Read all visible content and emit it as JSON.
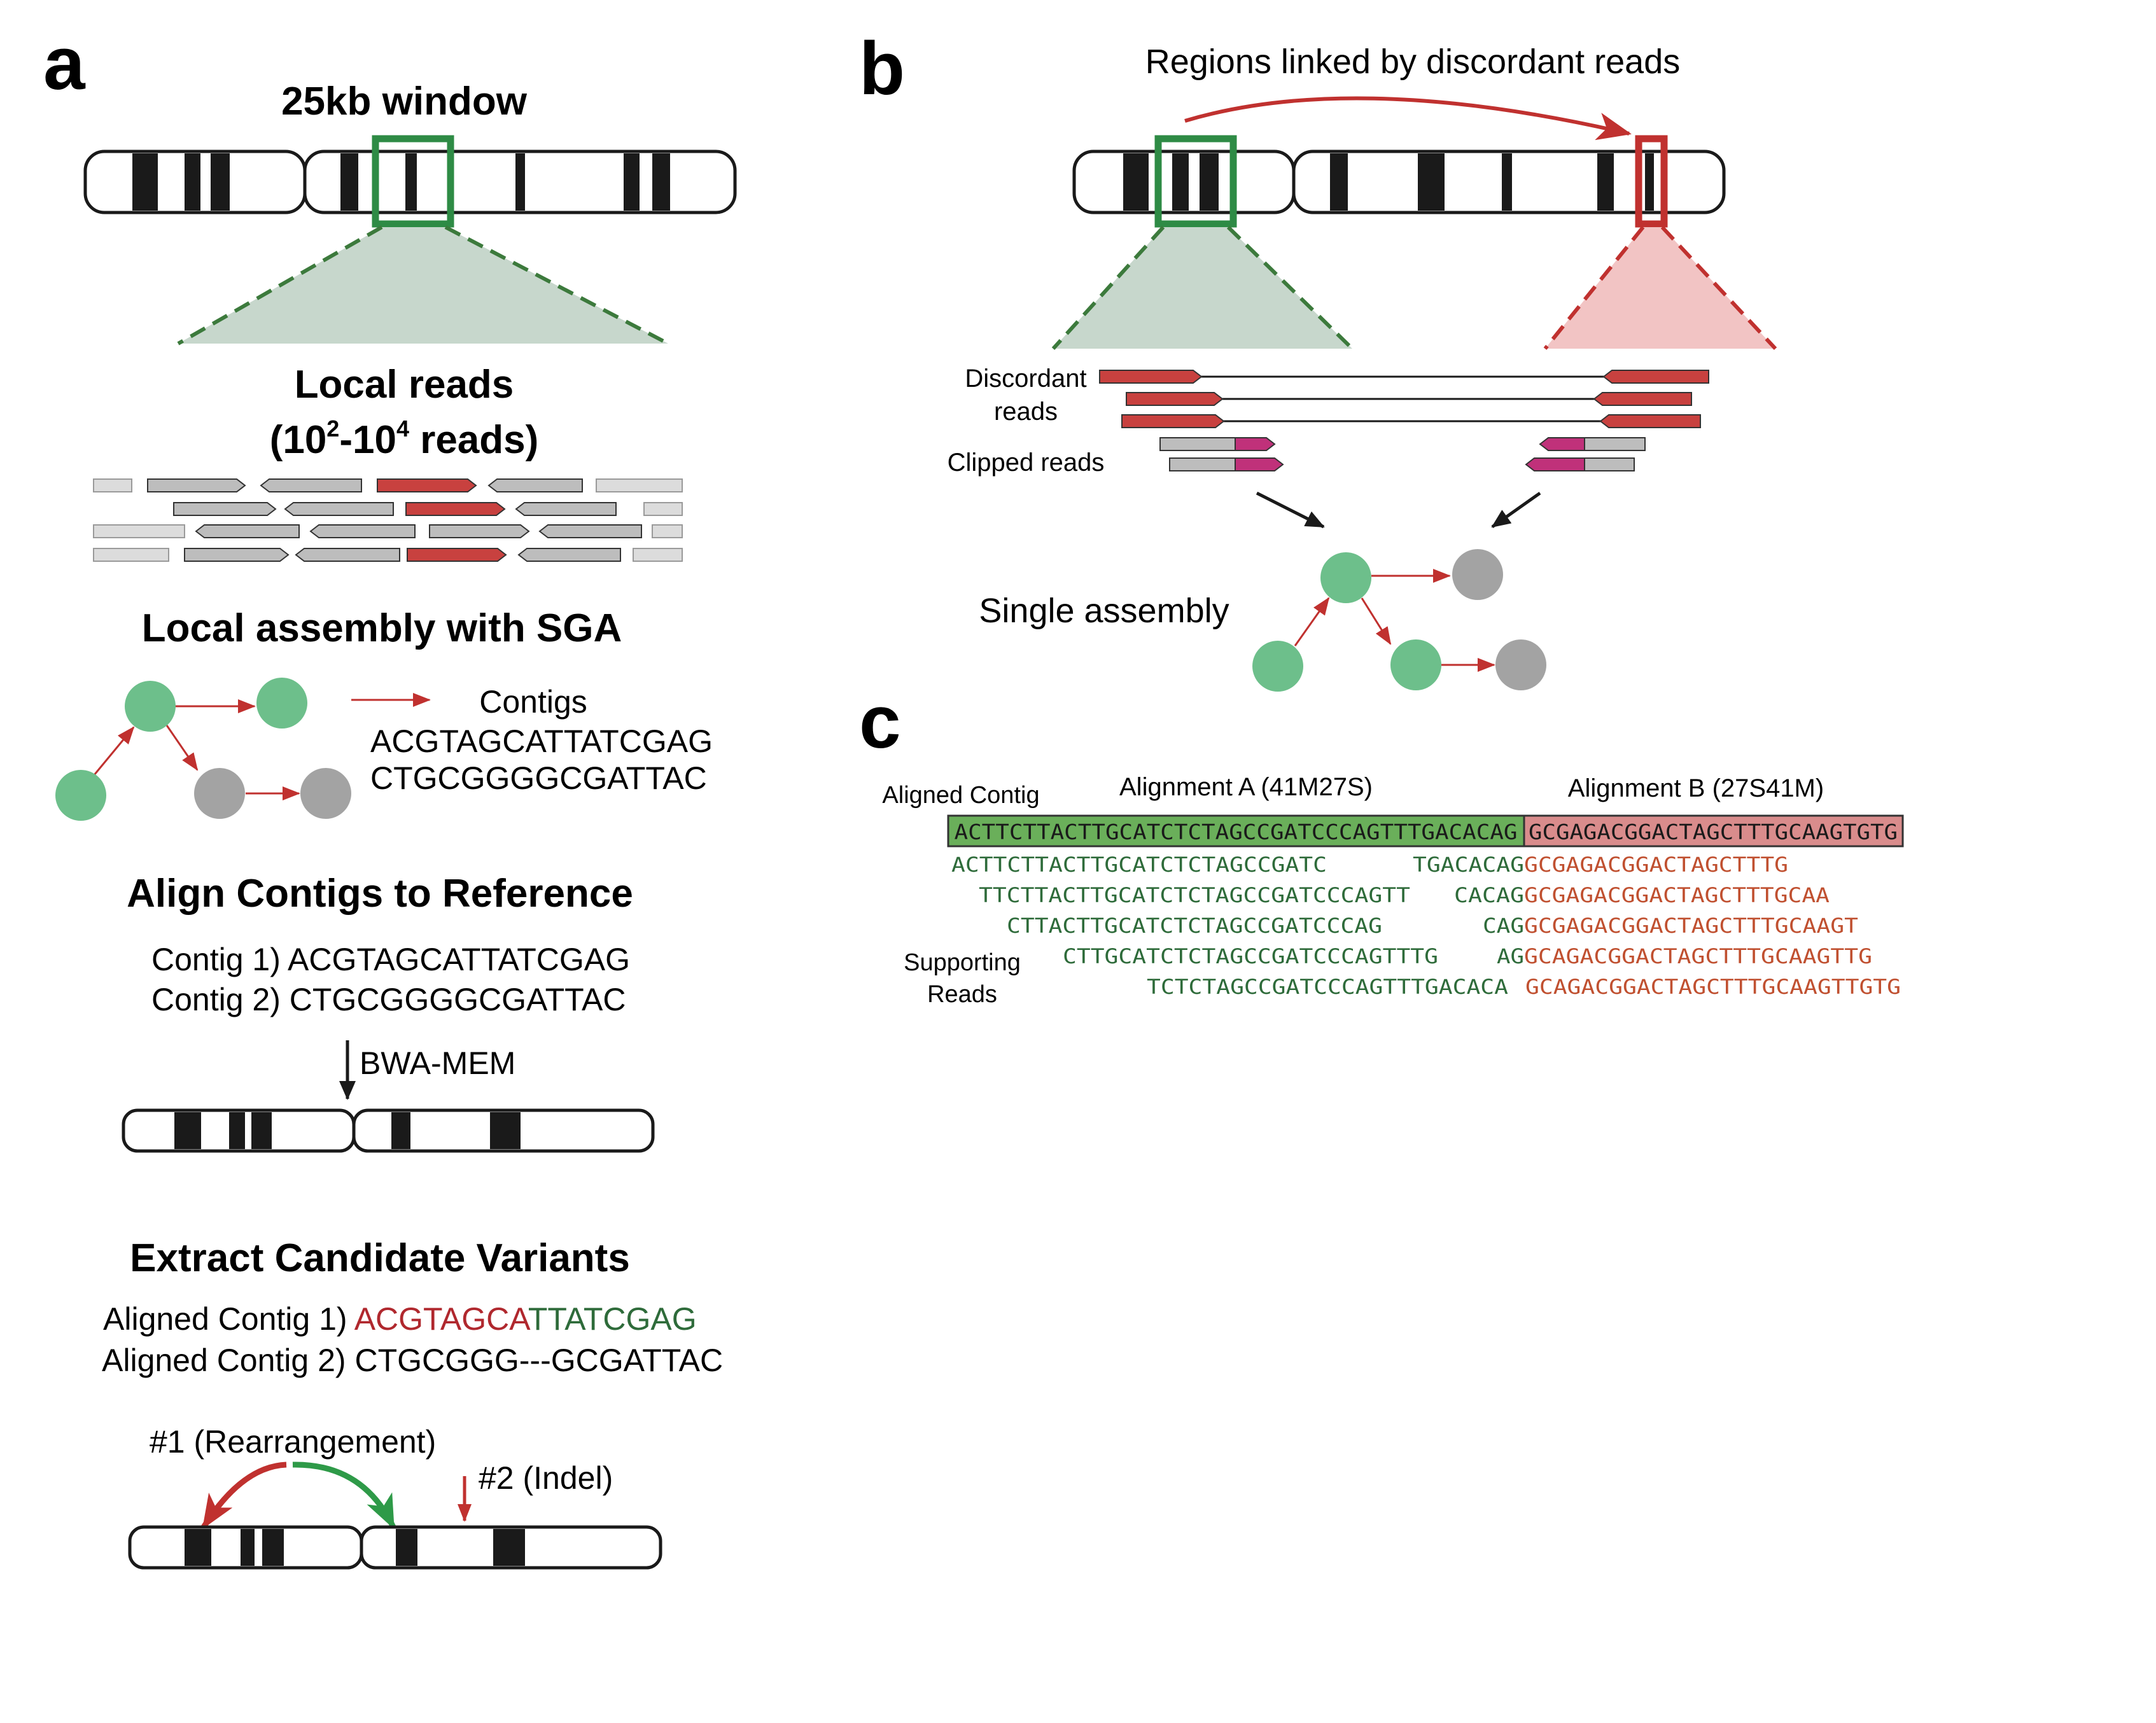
{
  "panels": {
    "a": {
      "letter": "a",
      "window_title": "25kb window",
      "local_reads_title": "Local reads",
      "local_reads_count": {
        "open": "(10",
        "exp1": "2",
        "dash": "-10",
        "exp2": "4",
        "close": " reads)"
      },
      "assembly_title": "Local assembly with SGA",
      "contigs_label": "Contigs",
      "contigs": [
        "ACGTAGCATTATCGAG",
        "CTGCGGGGCGATTAC"
      ],
      "align_title": "Align Contigs to Reference",
      "contig_lines": [
        "Contig 1) ACGTAGCATTATCGAG",
        "Contig 2) CTGCGGGGCGATTAC"
      ],
      "aligner": "BWA-MEM",
      "extract_title": "Extract Candidate Variants",
      "aligned_contig_1": {
        "prefix": "Aligned Contig 1) ",
        "red_part": "ACGTAGCA",
        "green_part": "TTATCGAG"
      },
      "aligned_contig_2": "Aligned Contig 2) CTGCGGG---GCGATTAC",
      "variant_1": "#1 (Rearrangement)",
      "variant_2": "#2 (Indel)"
    },
    "b": {
      "letter": "b",
      "title": "Regions linked by discordant reads",
      "discordant_label_1": "Discordant",
      "discordant_label_2": "reads",
      "clipped_label": "Clipped reads",
      "assembly_label": "Single assembly"
    },
    "c": {
      "letter": "c",
      "aligned_contig_label": "Aligned Contig",
      "alignment_a": "Alignment A (41M27S)",
      "alignment_b": "Alignment B (27S41M)",
      "contig_green": "ACTTCTTACTTGCATCTCTAGCCGATCCCAGTTTGACACAG",
      "contig_red": "GCGAGACGGACTAGCTTTGCAAGTGTG",
      "supporting_label_1": "Supporting",
      "supporting_label_2": "Reads",
      "reads_a": [
        "ACTTCTTACTTGCATCTCTAGCCGATC",
        "TTCTTACTTGCATCTCTAGCCGATCCCAGTT",
        "CTTACTTGCATCTCTAGCCGATCCCAG",
        "CTTGCATCTCTAGCCGATCCCAGTTTG",
        "TCTCTAGCCGATCCCAGTTTGACACA"
      ],
      "reads_b": [
        {
          "green": "TGACACAG",
          "red": "GCGAGACGGACTAGCTTTG"
        },
        {
          "green": "CACAG",
          "red": "GCGAGACGGACTAGCTTTGCAA"
        },
        {
          "green": "CAG",
          "red": "GCGAGACGGACTAGCTTTGCAAGT"
        },
        {
          "green": "AG",
          "red": "GCAGACGGACTAGCTTTGCAAGTTG"
        },
        {
          "green": "",
          "red": "GCAGACGGACTAGCTTTGCAAGTTGTG"
        }
      ]
    }
  },
  "colors": {
    "green_box": "#2e8b45",
    "red_box": "#c0312f",
    "green_fill": "#c7d7cc",
    "red_fill": "#f2c4c4",
    "contig_green_fill": "#6aaf5a",
    "contig_red_fill": "#d98c8c",
    "seq_green": "#2e6b3a",
    "seq_red": "#c05030",
    "seq_darkred": "#b0282e"
  }
}
